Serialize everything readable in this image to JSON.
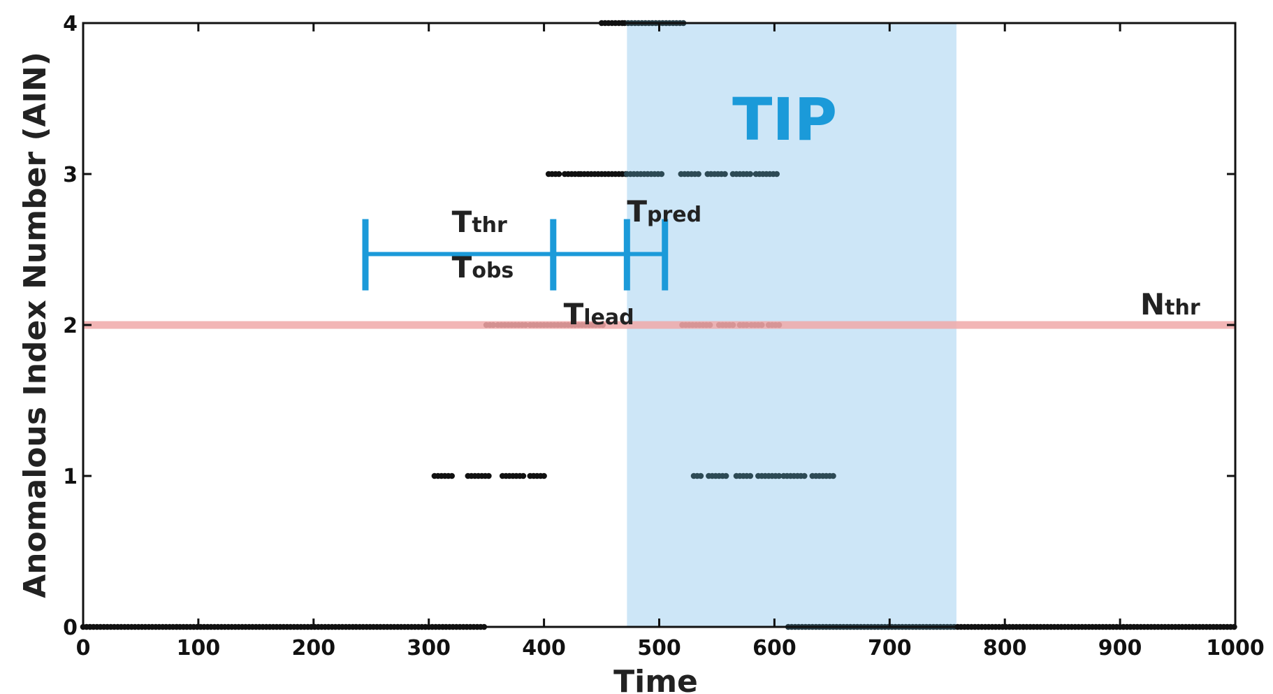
{
  "chart_data": {
    "type": "scatter",
    "title": "",
    "xlabel": "Time",
    "ylabel": "Anomalous Index Number (AIN)",
    "xlim": [
      0,
      1000
    ],
    "ylim": [
      0,
      4
    ],
    "xticks": [
      0,
      100,
      200,
      300,
      400,
      500,
      600,
      700,
      800,
      900,
      1000
    ],
    "yticks": [
      0,
      1,
      2,
      3,
      4
    ],
    "xtick_labels": [
      "0",
      "100",
      "200",
      "300",
      "400",
      "500",
      "600",
      "700",
      "800",
      "900",
      "1000"
    ],
    "ytick_labels": [
      "0",
      "1",
      "2",
      "3",
      "4"
    ],
    "grid": false,
    "tip_region": {
      "label": "TIP",
      "x_start": 472,
      "x_end": 758,
      "color": "#cde6f7"
    },
    "threshold": {
      "label_main": "N",
      "label_sub": "thr",
      "y": 2,
      "color": "#f0a8a8"
    },
    "intervals": {
      "color": "#1b9ad9",
      "y": 2.47,
      "ticks_x": [
        245,
        408,
        472,
        505
      ],
      "labels": [
        {
          "main": "T",
          "sub": "thr",
          "x": 320,
          "y": 2.68
        },
        {
          "main": "T",
          "sub": "obs",
          "x": 320,
          "y": 2.38
        },
        {
          "main": "T",
          "sub": "lead",
          "x": 417,
          "y": 2.07
        },
        {
          "main": "T",
          "sub": "pred",
          "x": 472,
          "y": 2.75
        }
      ]
    },
    "series": [
      {
        "y": 0,
        "segments": [
          [
            0,
            350
          ],
          [
            612,
            1000
          ]
        ],
        "dark_color": "#111111",
        "tip_color": "#263c45"
      },
      {
        "y": 1,
        "segments": [
          [
            305,
            320
          ],
          [
            334,
            352
          ],
          [
            364,
            384
          ],
          [
            388,
            400
          ],
          [
            530,
            537
          ],
          [
            543,
            558
          ],
          [
            567,
            580
          ],
          [
            586,
            604
          ],
          [
            608,
            628
          ],
          [
            633,
            652
          ]
        ],
        "dark_color": "#111111",
        "tip_color": "#2d4a55"
      },
      {
        "y": 2,
        "segments": [
          [
            350,
            356
          ],
          [
            360,
            375
          ],
          [
            378,
            384
          ],
          [
            388,
            398
          ],
          [
            400,
            452
          ],
          [
            520,
            546
          ],
          [
            552,
            565
          ],
          [
            570,
            576
          ],
          [
            580,
            590
          ],
          [
            595,
            604
          ]
        ],
        "dark_color": "#3a0e0e",
        "tip_color": "#4d2a2e"
      },
      {
        "y": 3,
        "segments": [
          [
            404,
            414
          ],
          [
            418,
            430
          ],
          [
            432,
            472
          ],
          [
            472,
            504
          ],
          [
            519,
            536
          ],
          [
            542,
            558
          ],
          [
            564,
            580
          ],
          [
            584,
            602
          ]
        ],
        "dark_color": "#111111",
        "tip_color": "#2d4a55"
      },
      {
        "y": 4,
        "segments": [
          [
            450,
            468
          ],
          [
            470,
            522
          ]
        ],
        "dark_color": "#111111",
        "tip_color": "#263c45"
      }
    ]
  }
}
